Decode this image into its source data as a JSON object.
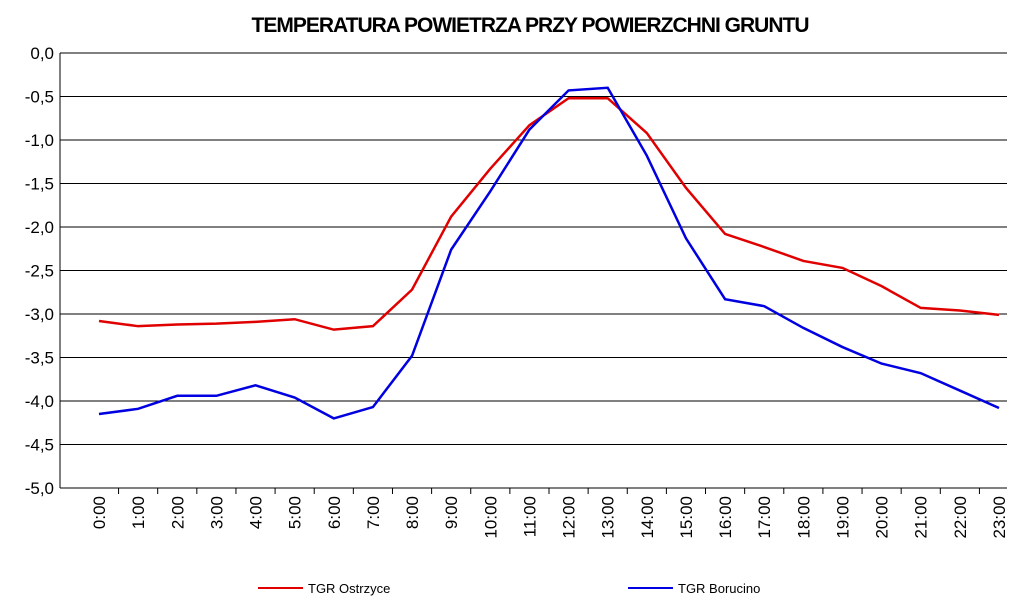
{
  "chart_data": {
    "type": "line",
    "title": "TEMPERATURA POWIETRZA PRZY POWIERZCHNI GRUNTU",
    "categories": [
      "0:00",
      "1:00",
      "2:00",
      "3:00",
      "4:00",
      "5:00",
      "6:00",
      "7:00",
      "8:00",
      "9:00",
      "10:00",
      "11:00",
      "12:00",
      "13:00",
      "14:00",
      "15:00",
      "16:00",
      "17:00",
      "18:00",
      "19:00",
      "20:00",
      "21:00",
      "22:00",
      "23:00"
    ],
    "series": [
      {
        "name": "TGR Ostrzyce",
        "color": "#e00000",
        "values": [
          -3.08,
          -3.14,
          -3.12,
          -3.11,
          -3.09,
          -3.06,
          -3.18,
          -3.14,
          -2.72,
          -1.88,
          -1.33,
          -0.83,
          -0.52,
          -0.52,
          -0.92,
          -1.55,
          -2.08,
          -2.23,
          -2.39,
          -2.47,
          -2.68,
          -2.93,
          -2.96,
          -3.01
        ]
      },
      {
        "name": "TGR Borucino",
        "color": "#0000e0",
        "values": [
          -4.15,
          -4.09,
          -3.94,
          -3.94,
          -3.82,
          -3.96,
          -4.2,
          -4.07,
          -3.48,
          -2.26,
          -1.59,
          -0.88,
          -0.43,
          -0.4,
          -1.18,
          -2.13,
          -2.83,
          -2.91,
          -3.16,
          -3.38,
          -3.57,
          -3.68,
          -3.88,
          -4.08
        ]
      }
    ],
    "ylim": [
      -5,
      0
    ],
    "yticks": [
      {
        "value": 0,
        "label": "0,0"
      },
      {
        "value": -0.5,
        "label": "-0,5"
      },
      {
        "value": -1,
        "label": "-1,0"
      },
      {
        "value": -1.5,
        "label": "-1,5"
      },
      {
        "value": -2,
        "label": "-2,0"
      },
      {
        "value": -2.5,
        "label": "-2,5"
      },
      {
        "value": -3,
        "label": "-3,0"
      },
      {
        "value": -3.5,
        "label": "-3,5"
      },
      {
        "value": -4,
        "label": "-4,0"
      },
      {
        "value": -4.5,
        "label": "-4,5"
      },
      {
        "value": -5,
        "label": "-5,0"
      }
    ],
    "grid": true,
    "legend": "bottom"
  }
}
